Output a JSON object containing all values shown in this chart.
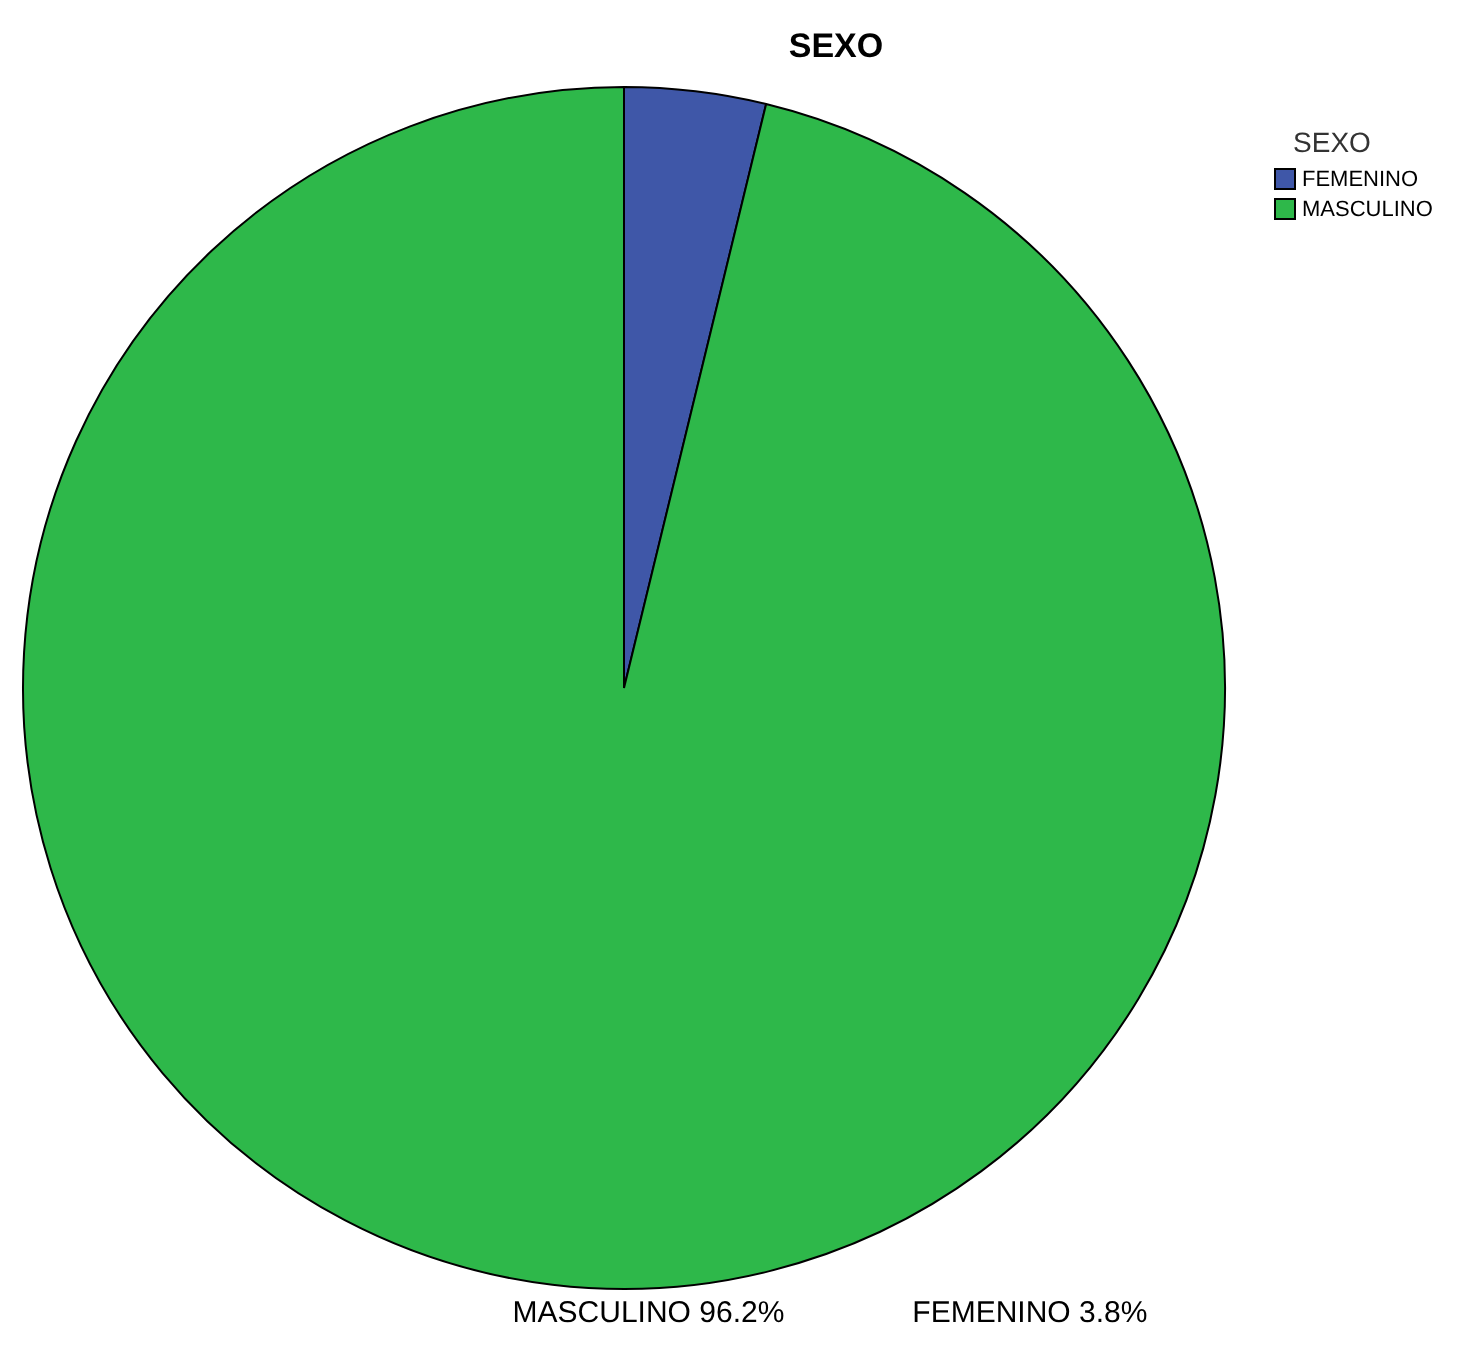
{
  "chart_data": {
    "type": "pie",
    "title": "SEXO",
    "legend_title": "SEXO",
    "legend": "top right",
    "categories": [
      "FEMENINO",
      "MASCULINO"
    ],
    "values": [
      3.8,
      96.2
    ],
    "colors": [
      "#3f57a8",
      "#2eb84a"
    ],
    "annotations": [
      "MASCULINO 96.2%",
      "FEMENINO 3.8%"
    ]
  }
}
